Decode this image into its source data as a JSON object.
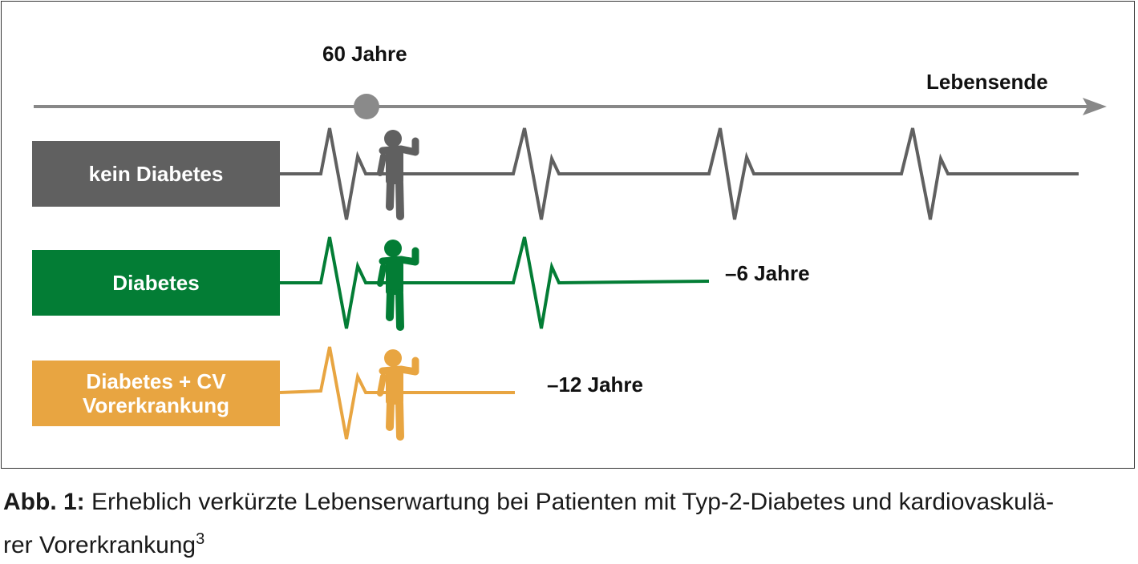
{
  "timeline": {
    "age_label": "60 Jahre",
    "end_label": "Lebensende"
  },
  "rows": [
    {
      "label": "kein Diabetes",
      "color": "#606060",
      "loss_label": ""
    },
    {
      "label": "Diabetes",
      "color": "#037d35",
      "loss_label": "–6 Jahre"
    },
    {
      "label_line1": "Diabetes + CV",
      "label_line2": "Vorerkrankung",
      "color": "#e8a541",
      "loss_label": "–12 Jahre"
    }
  ],
  "colors": {
    "axis": "#888888",
    "frame": "#333333"
  },
  "caption": {
    "prefix": "Abb. 1:",
    "text": " Erheblich verkürzte Lebenserwartung bei Patienten mit Typ-2-Diabetes und kardiovasku­lä-",
    "text_line2": "rer Vorerkrankung",
    "superscript": "3"
  }
}
